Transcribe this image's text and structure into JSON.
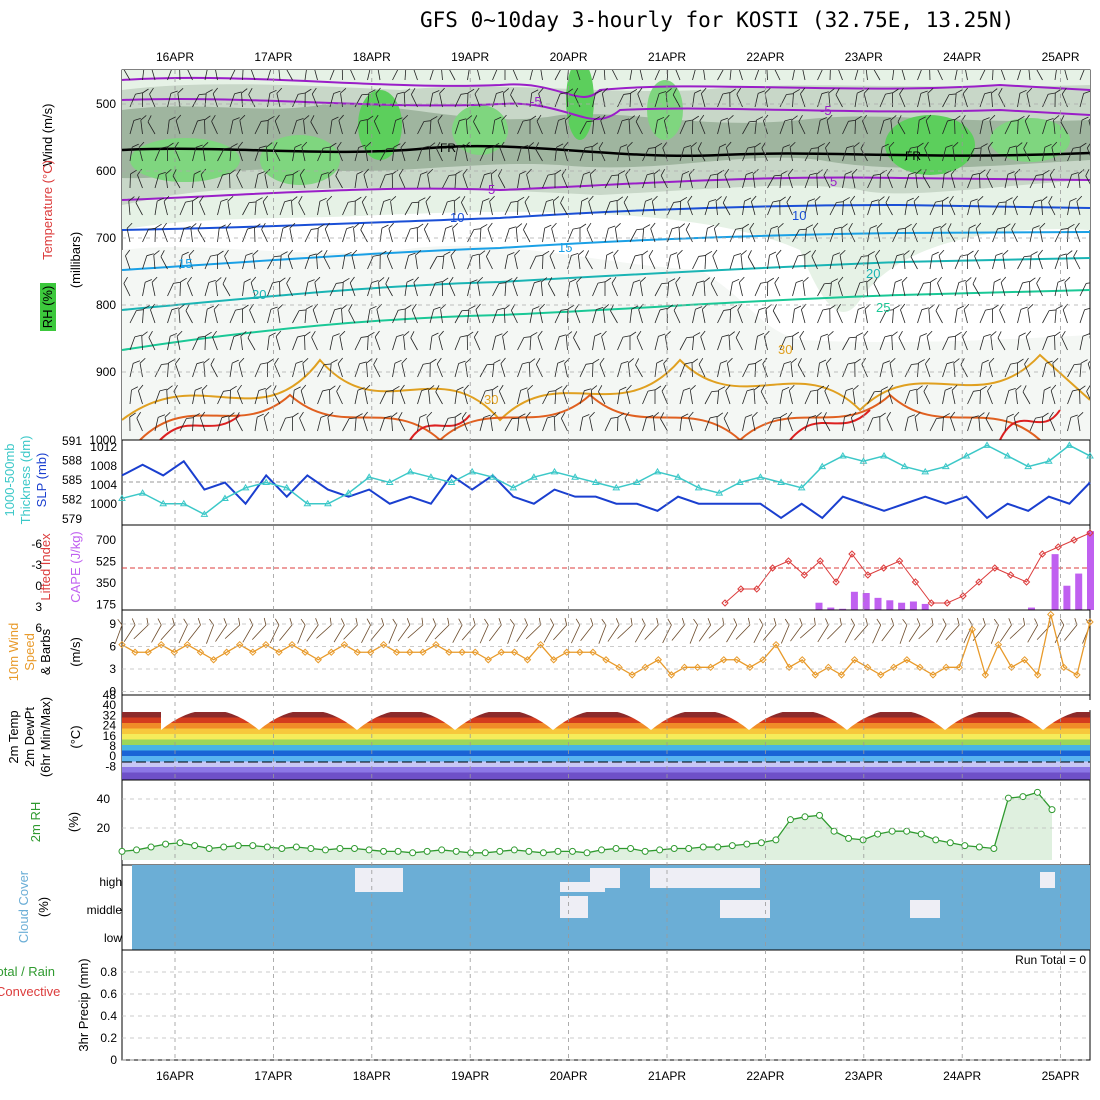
{
  "title": "GFS 0~10day 3-hourly for KOSTI (32.75E, 13.25N)",
  "dates": [
    "16APR",
    "17APR",
    "18APR",
    "19APR",
    "20APR",
    "21APR",
    "22APR",
    "23APR",
    "24APR",
    "25APR"
  ],
  "panels": {
    "upper": {
      "ylabel_wind": "Wind (m/s)",
      "ylabel_temp": "Temperature (°C)",
      "ylabel_rh": "RH (%)",
      "ylabel_units": "(millibars)",
      "yticks": [
        "500",
        "600",
        "700",
        "800",
        "900",
        "1000"
      ],
      "freezing_label": "FR",
      "contour_labels": [
        "-5",
        "-5",
        "-5",
        "5",
        "5",
        "10",
        "10",
        "15",
        "15",
        "20",
        "20",
        "25",
        "30",
        "30",
        "30",
        "30",
        "10",
        "10",
        "10"
      ]
    },
    "thickness": {
      "ylabel1": "1000-500mb",
      "ylabel2": "Thickness (dm)",
      "ylabel3": "SLP (mb)",
      "left_ticks": [
        "591",
        "588",
        "585",
        "582",
        "579"
      ],
      "right_ticks": [
        "1012",
        "1008",
        "1004",
        "1000"
      ]
    },
    "cape": {
      "ylabel1": "Lifted Index",
      "ylabel2": "CAPE (J/kg)",
      "left_ticks": [
        "-6",
        "-3",
        "0",
        "3",
        "6"
      ],
      "right_ticks": [
        "700",
        "525",
        "350",
        "175"
      ]
    },
    "wind10": {
      "ylabel1": "10m Wind",
      "ylabel2": "Speed",
      "ylabel3": "& Barbs",
      "ylabel4": "(m/s)",
      "yticks": [
        "9",
        "6",
        "3",
        "0"
      ]
    },
    "temp2m": {
      "ylabel1": "2m Temp",
      "ylabel2": "2m DewPt",
      "ylabel3": "(6hr Min/Max)",
      "ylabel4": "(°C)",
      "yticks": [
        "48",
        "40",
        "32",
        "24",
        "16",
        "8",
        "0",
        "-8"
      ]
    },
    "rh2m": {
      "ylabel1": "2m RH",
      "ylabel2": "(%)",
      "yticks": [
        "40",
        "20"
      ]
    },
    "cloud": {
      "ylabel1": "Cloud Cover",
      "ylabel2": "(%)",
      "levels": [
        "high",
        "middle",
        "low"
      ]
    },
    "precip": {
      "ylabel1": "3hr Precip (mm)",
      "ylabel2": "Total / Rain",
      "ylabel3": "Convective",
      "run_total": "Run Total = 0",
      "yticks": [
        "0.8",
        "0.6",
        "0.4",
        "0.2",
        "0"
      ]
    }
  },
  "colors": {
    "rh_green": "#3cc83c",
    "cloud_blue": "#6baed6",
    "thickness": "#1a3fcf",
    "slp": "#3cc8c8",
    "lifted_index": "#dc3c3c",
    "cape": "#c060f0",
    "wind_speed": "#e89a2a",
    "rh2m": "#2f9a2f"
  },
  "chart_data": {
    "type": "line",
    "time_axis": [
      "16APR",
      "17APR",
      "18APR",
      "19APR",
      "20APR",
      "21APR",
      "22APR",
      "23APR",
      "24APR",
      "25APR"
    ],
    "series": [
      {
        "name": "1000-500mb Thickness (dm)",
        "values": [
          586,
          587.5,
          586,
          588,
          584,
          585,
          582,
          586,
          583,
          586,
          584,
          583,
          584,
          582,
          583,
          582,
          586,
          584,
          586,
          583,
          582,
          584,
          583,
          583,
          582,
          582,
          581,
          583,
          582,
          582,
          582,
          582,
          580,
          582,
          580,
          583,
          582,
          581,
          582,
          583,
          582,
          583,
          580,
          582,
          581,
          583,
          582,
          585
        ]
      },
      {
        "name": "SLP (mb)",
        "values": [
          1001,
          1002,
          1000,
          1000,
          998,
          1001,
          1003,
          1004,
          1003,
          1000,
          1000,
          1002,
          1005,
          1004,
          1006,
          1005,
          1004,
          1006,
          1005,
          1003,
          1005,
          1006,
          1005,
          1004,
          1003,
          1004,
          1006,
          1005,
          1003,
          1002,
          1004,
          1005,
          1004,
          1003,
          1007,
          1009,
          1008,
          1009,
          1007,
          1006,
          1007,
          1009,
          1011,
          1009,
          1007,
          1008,
          1011,
          1009
        ]
      },
      {
        "name": "Lifted Index",
        "values": [
          null,
          null,
          null,
          null,
          null,
          null,
          null,
          null,
          null,
          null,
          null,
          null,
          null,
          null,
          null,
          null,
          null,
          null,
          null,
          null,
          null,
          null,
          null,
          null,
          null,
          null,
          null,
          null,
          null,
          null,
          null,
          null,
          null,
          null,
          null,
          null,
          null,
          null,
          5,
          3,
          3,
          0,
          -1,
          1,
          -1,
          2,
          -2,
          1,
          0,
          -1,
          2,
          5,
          5,
          4,
          2,
          0,
          1,
          2,
          -2,
          -3,
          -4,
          -5
        ]
      },
      {
        "name": "CAPE (J/kg)",
        "values": [
          0,
          0,
          0,
          0,
          0,
          0,
          0,
          0,
          0,
          0,
          0,
          0,
          0,
          0,
          0,
          0,
          0,
          0,
          0,
          0,
          0,
          0,
          0,
          0,
          0,
          0,
          0,
          0,
          0,
          0,
          0,
          0,
          0,
          0,
          0,
          0,
          0,
          0,
          0,
          0,
          0,
          0,
          0,
          0,
          0,
          0,
          0,
          0,
          0,
          0,
          0,
          0,
          0,
          0,
          0,
          0,
          0,
          0,
          0,
          60,
          20,
          10,
          150,
          140,
          100,
          80,
          60,
          70,
          50,
          0,
          0,
          0,
          0,
          0,
          0,
          0,
          0,
          20,
          0,
          460,
          200,
          300,
          650
        ]
      },
      {
        "name": "10m Wind Speed (m/s)",
        "values": [
          6,
          5,
          5,
          6,
          5,
          6,
          5,
          4,
          5,
          6,
          5,
          6,
          5,
          6,
          5,
          4,
          5,
          6,
          5,
          5,
          6,
          5,
          5,
          5,
          6,
          5,
          5,
          5,
          4,
          5,
          5,
          4,
          6,
          4,
          5,
          5,
          5,
          4,
          3,
          2,
          3,
          4,
          2,
          3,
          3,
          3,
          4,
          4,
          3,
          4,
          6,
          3,
          4,
          2,
          3,
          2,
          4,
          3,
          2,
          3,
          4,
          3,
          2,
          3,
          3,
          8,
          2,
          6,
          3,
          4,
          2,
          10,
          3,
          2,
          9
        ]
      },
      {
        "name": "2m RH (%)",
        "values": [
          6,
          7,
          9,
          11,
          12,
          10,
          8,
          9,
          10,
          10,
          9,
          8,
          9,
          8,
          7,
          8,
          8,
          7,
          6,
          6,
          5,
          6,
          7,
          6,
          5,
          5,
          6,
          7,
          6,
          5,
          6,
          6,
          5,
          7,
          8,
          8,
          6,
          7,
          8,
          8,
          9,
          9,
          10,
          11,
          12,
          14,
          28,
          30,
          31,
          20,
          15,
          14,
          18,
          20,
          20,
          18,
          14,
          12,
          10,
          9,
          8,
          43,
          44,
          47,
          35
        ]
      },
      {
        "name": "3hr Precip (mm)",
        "values": [
          0,
          0,
          0,
          0,
          0,
          0,
          0,
          0,
          0,
          0
        ]
      }
    ],
    "ylim_thickness": [
      579,
      591
    ],
    "ylim_slp": [
      996,
      1012
    ],
    "ylim_li": [
      6,
      -6
    ],
    "ylim_cape": [
      0,
      700
    ],
    "ylim_wind": [
      0,
      9
    ],
    "ylim_rh": [
      0,
      50
    ],
    "ylim_precip": [
      0,
      1
    ]
  }
}
